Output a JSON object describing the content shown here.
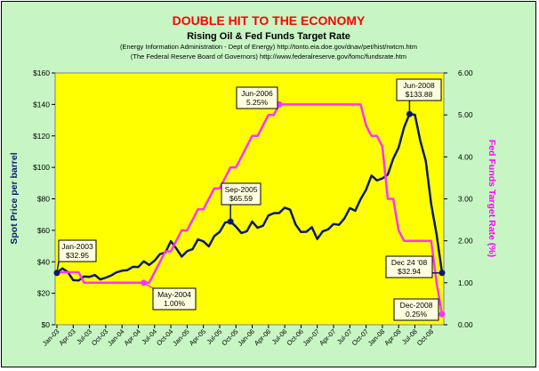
{
  "chart_data": {
    "type": "line",
    "title": "DOUBLE HIT TO THE ECONOMY",
    "subtitle": "Rising Oil & Fed Funds Target Rate",
    "sources": [
      "(Energy Information Administration - Dept of Energy) http://tonto.eia.doe.gov/dnav/pet/hist/rwtcm.htm",
      "(The Federal Reserve Board of Governors) http://www.federalreserve.gov/fomc/fundsrate.htm"
    ],
    "ylabel": "Spot Price per barrel",
    "y2label": "Fed Funds Target Rate (%)",
    "ylim": [
      0,
      160
    ],
    "y2lim": [
      0,
      6
    ],
    "yticks": [
      "$0",
      "$20",
      "$40",
      "$60",
      "$80",
      "$100",
      "$120",
      "$140",
      "$160"
    ],
    "y2ticks": [
      "0.00",
      "1.00",
      "2.00",
      "3.00",
      "4.00",
      "5.00",
      "6.00"
    ],
    "xticks": [
      "Jan-03",
      "Apr-03",
      "Jul-03",
      "Oct-03",
      "Jan-04",
      "Apr-04",
      "Jul-04",
      "Oct-04",
      "Jan-05",
      "Apr-05",
      "Jul-05",
      "Oct-05",
      "Jan-06",
      "Apr-06",
      "Jul-06",
      "Oct-06",
      "Jan-07",
      "Apr-07",
      "Jul-07",
      "Oct-07",
      "Jan-08",
      "Apr-08",
      "Jul-08",
      "Oct-08"
    ],
    "grid": false,
    "background": "#ffff00",
    "series": [
      {
        "axis": "left",
        "color": "#0a1a6b",
        "values": [
          32.95,
          35.8,
          33.5,
          28.3,
          28.1,
          30.7,
          30.4,
          31.6,
          28.8,
          29.9,
          31.3,
          33.3,
          34.3,
          34.7,
          36.8,
          36.7,
          40.3,
          38,
          40.7,
          44.9,
          45.9,
          53.1,
          48.5,
          43.3,
          46.8,
          48,
          54.3,
          53,
          49.8,
          56.3,
          59,
          64.9,
          65.59,
          62.3,
          58.3,
          59.4,
          65.5,
          61.6,
          62.9,
          69.4,
          70.9,
          71,
          74.4,
          73.1,
          63.8,
          58.9,
          59.1,
          62,
          54.5,
          59.3,
          60.6,
          64,
          63.5,
          67.5,
          74.1,
          72.4,
          79.9,
          85.8,
          94.8,
          91.7,
          93,
          95.4,
          105.5,
          112.6,
          125.4,
          133.88,
          133.4,
          116.7,
          104.1,
          76.6,
          57.3,
          32.94
        ]
      },
      {
        "axis": "right",
        "color": "#ff33ff",
        "values": [
          1.25,
          1.25,
          1.25,
          1.25,
          1.25,
          1,
          1,
          1,
          1,
          1,
          1,
          1,
          1,
          1,
          1,
          1,
          1,
          1,
          1.25,
          1.5,
          1.75,
          1.75,
          2,
          2.25,
          2.25,
          2.5,
          2.75,
          2.75,
          3,
          3.25,
          3.25,
          3.5,
          3.75,
          3.75,
          4,
          4.25,
          4.5,
          4.5,
          4.75,
          5,
          5,
          5.25,
          5.25,
          5.25,
          5.25,
          5.25,
          5.25,
          5.25,
          5.25,
          5.25,
          5.25,
          5.25,
          5.25,
          5.25,
          5.25,
          5.25,
          5.25,
          4.75,
          4.5,
          4.5,
          4.25,
          3,
          3,
          2.25,
          2,
          2,
          2,
          2,
          2,
          2,
          1,
          0.25
        ]
      }
    ],
    "annotations": [
      {
        "label": "Jan-2003",
        "value": "$32.95",
        "series": 0,
        "index": 0
      },
      {
        "label": "Sep-2005",
        "value": "$65.59",
        "series": 0,
        "index": 32
      },
      {
        "label": "Jun-2008",
        "value": "$133.88",
        "series": 0,
        "index": 65
      },
      {
        "label": "Dec 24 '08",
        "value": "$32.94",
        "series": 0,
        "index": 71
      },
      {
        "label": "May-2004",
        "value": "1.00%",
        "series": 1,
        "index": 16
      },
      {
        "label": "Jun-2006",
        "value": "5.25%",
        "series": 1,
        "index": 41
      },
      {
        "label": "Dec-2008",
        "value": "0.25%",
        "series": 1,
        "index": 71
      }
    ]
  }
}
